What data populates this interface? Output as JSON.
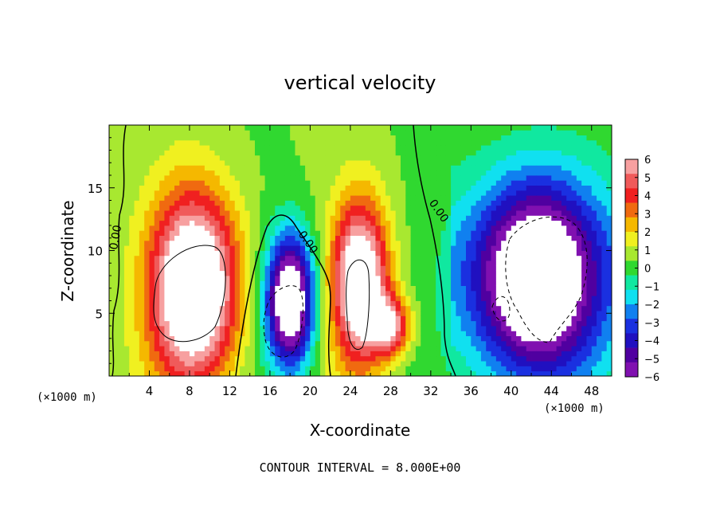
{
  "chart_data": {
    "type": "heatmap",
    "title": "vertical velocity",
    "xlabel": "X-coordinate",
    "ylabel": "Z-coordinate",
    "x_unit": "(×1000 m)",
    "z_unit": "(×1000 m)",
    "xlim": [
      0,
      50
    ],
    "ylim": [
      0,
      20
    ],
    "x_ticks": [
      "4",
      "8",
      "12",
      "16",
      "20",
      "24",
      "28",
      "32",
      "36",
      "40",
      "44",
      "48"
    ],
    "y_ticks": [
      "5",
      "10",
      "15"
    ],
    "colorbar": {
      "min": -6,
      "max": 6,
      "labels": [
        "6",
        "5",
        "4",
        "3",
        "2",
        "1",
        "0",
        "−1",
        "−2",
        "−3",
        "−4",
        "−5",
        "−6"
      ],
      "colors": [
        "#f7a0a0",
        "#f05a5a",
        "#f02020",
        "#f06a10",
        "#f5b800",
        "#f0f020",
        "#a8e830",
        "#30d830",
        "#10e8a0",
        "#10e0f0",
        "#1080f0",
        "#1a30e0",
        "#2010c0",
        "#5000a0",
        "#8010b0"
      ]
    },
    "contour_labels": [
      {
        "text": "0.00",
        "x": 1,
        "z": 11
      },
      {
        "text": "0.00",
        "x": 19.5,
        "z": 10.5
      },
      {
        "text": "0.00",
        "x": 32.5,
        "z": 13
      }
    ],
    "footer": "CONTOUR INTERVAL = 8.000E+00",
    "features": [
      {
        "kind": "updraft",
        "x": 8.5,
        "z": 7,
        "rx": 5.5,
        "rz": 9.5,
        "peak": 9
      },
      {
        "kind": "downdraft",
        "x": 18,
        "z": 6,
        "rx": 3.0,
        "rz": 6.5,
        "peak": -9
      },
      {
        "kind": "updraft",
        "x": 25,
        "z": 7.5,
        "rx": 3.5,
        "rz": 8,
        "peak": 8
      },
      {
        "kind": "updraft",
        "x": 28,
        "z": 4,
        "rx": 2.5,
        "rz": 3,
        "peak": 5
      },
      {
        "kind": "downdraft",
        "x": 42.5,
        "z": 7.5,
        "rx": 7.5,
        "rz": 10,
        "peak": -9
      }
    ]
  }
}
